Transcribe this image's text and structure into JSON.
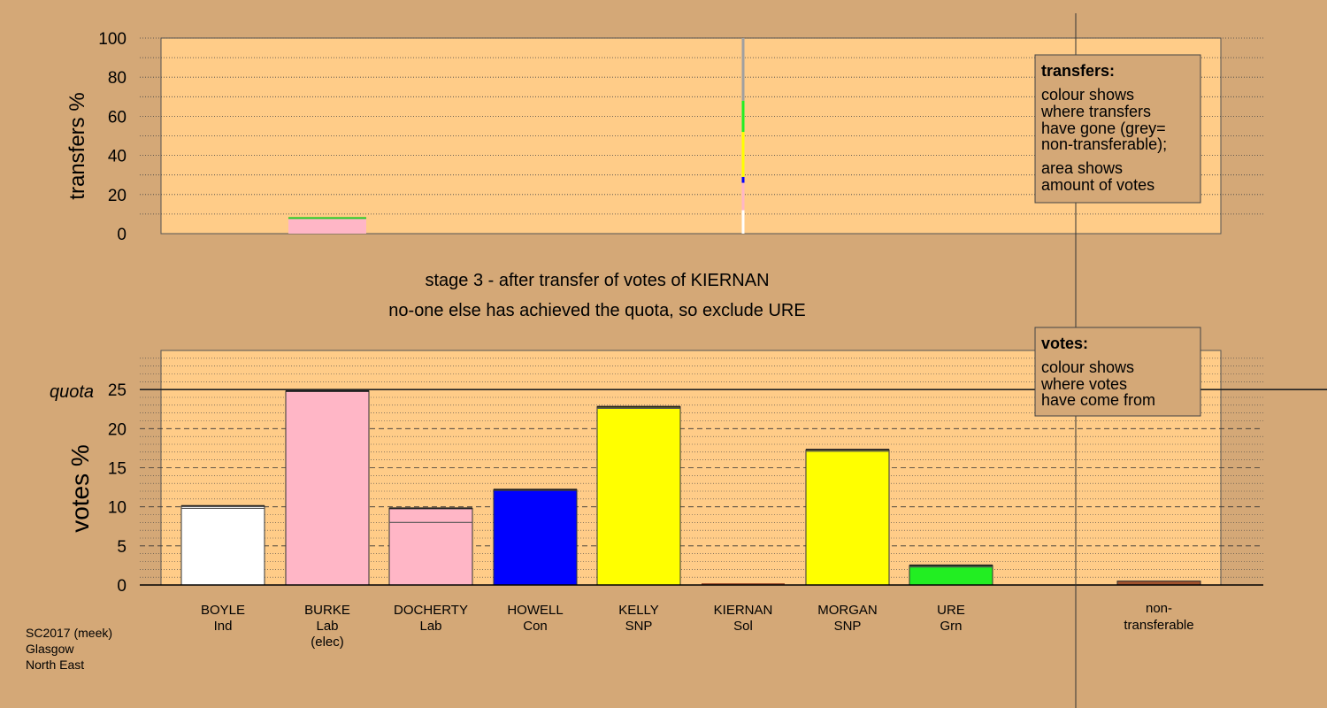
{
  "chart_data": [
    {
      "type": "bar",
      "name": "transfers",
      "ylabel": "transfers %",
      "ylim": [
        0,
        100
      ],
      "yticks": [
        0,
        20,
        40,
        60,
        80,
        100
      ],
      "categories": [
        "BOYLE",
        "BURKE",
        "DOCHERTY",
        "HOWELL",
        "KELLY",
        "KIERNAN",
        "MORGAN",
        "URE"
      ],
      "series": [
        {
          "values": [
            0,
            8,
            0,
            0,
            0,
            0,
            0,
            0
          ]
        }
      ],
      "kiernan_transfer_segments": [
        {
          "color": "#ffffff",
          "from": 0,
          "to": 12
        },
        {
          "color": "#ffb6c6",
          "from": 12,
          "to": 26
        },
        {
          "color": "#0000ff",
          "from": 26,
          "to": 29
        },
        {
          "color": "#ffff00",
          "from": 29,
          "to": 52
        },
        {
          "color": "#22ee22",
          "from": 52,
          "to": 68
        },
        {
          "color": "#a0a0a0",
          "from": 68,
          "to": 100
        }
      ],
      "legend": {
        "title": "transfers:",
        "lines": [
          "colour shows",
          "where transfers",
          "have gone (grey=",
          "non-transferable);",
          "area shows",
          "amount of votes"
        ]
      }
    },
    {
      "type": "bar",
      "name": "votes",
      "ylabel": "votes %",
      "ylim": [
        0,
        30
      ],
      "yticks": [
        0,
        5,
        10,
        15,
        20,
        25
      ],
      "quota": 25,
      "quota_label": "quota",
      "candidates": [
        {
          "name": "BOYLE",
          "party": "Ind",
          "extra": "",
          "color": "#ffffff",
          "value": 10.1,
          "base": 9.8
        },
        {
          "name": "BURKE",
          "party": "Lab",
          "extra": "(elec)",
          "color": "#ffb6c6",
          "value": 24.8,
          "base": 24.8
        },
        {
          "name": "DOCHERTY",
          "party": "Lab",
          "extra": "",
          "color": "#ffb6c6",
          "value": 9.8,
          "base": 8.0
        },
        {
          "name": "HOWELL",
          "party": "Con",
          "extra": "",
          "color": "#0000ff",
          "value": 12.2,
          "base": 12.1
        },
        {
          "name": "KELLY",
          "party": "SNP",
          "extra": "",
          "color": "#ffff00",
          "value": 22.8,
          "base": 22.6
        },
        {
          "name": "KIERNAN",
          "party": "Sol",
          "extra": "",
          "color": "#a0522d",
          "value": 0,
          "base": 0
        },
        {
          "name": "MORGAN",
          "party": "SNP",
          "extra": "",
          "color": "#ffff00",
          "value": 17.3,
          "base": 17.1
        },
        {
          "name": "URE",
          "party": "Grn",
          "extra": "",
          "color": "#22ee22",
          "value": 2.5,
          "base": 2.3
        }
      ],
      "nontransferable": {
        "label1": "non-",
        "label2": "transferable",
        "value": 0.5,
        "color": "#a0522d"
      },
      "legend": {
        "title": "votes:",
        "lines": [
          "colour shows",
          "where votes",
          "have come from"
        ]
      }
    }
  ],
  "stage_title": "stage 3 - after transfer of votes of KIERNAN",
  "stage_subtitle": "no-one else has achieved the quota, so exclude URE",
  "footer": [
    "SC2017 (meek)",
    "Glasgow",
    "North East"
  ],
  "colors": {
    "background": "#d4a877",
    "plot_bg": "#ffcc88"
  }
}
